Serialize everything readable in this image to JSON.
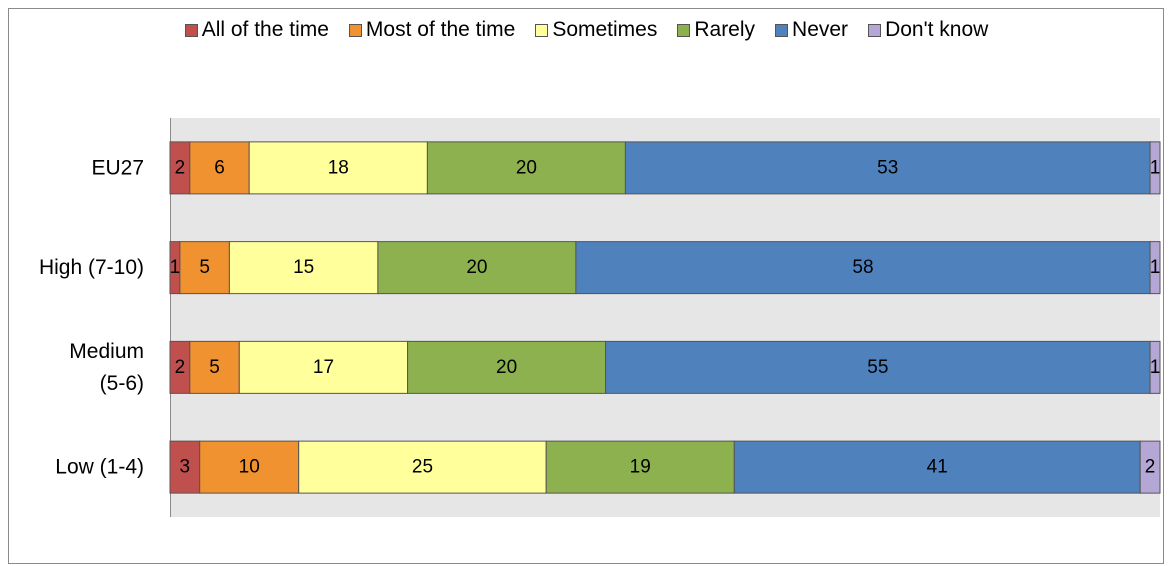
{
  "chart_data": {
    "type": "bar",
    "orientation": "horizontal",
    "stacked": true,
    "categories": [
      "EU27",
      "High (7-10)",
      "Medium (5-6)",
      "Low (1-4)"
    ],
    "category_lines": [
      [
        "EU27"
      ],
      [
        "High (7-10)"
      ],
      [
        "Medium",
        "(5-6)"
      ],
      [
        "Low (1-4)"
      ]
    ],
    "series": [
      {
        "name": "All of the time",
        "color": "#c0504d",
        "values": [
          2,
          1,
          2,
          3
        ]
      },
      {
        "name": "Most of the time",
        "color": "#f0922f",
        "values": [
          6,
          5,
          5,
          10
        ]
      },
      {
        "name": "Sometimes",
        "color": "#ffff9c",
        "values": [
          18,
          15,
          17,
          25
        ]
      },
      {
        "name": "Rarely",
        "color": "#8db14f",
        "values": [
          20,
          20,
          20,
          19
        ]
      },
      {
        "name": "Never",
        "color": "#4f81bd",
        "values": [
          53,
          58,
          55,
          41
        ]
      },
      {
        "name": "Don't know",
        "color": "#b4a7d6",
        "values": [
          1,
          1,
          1,
          2
        ]
      }
    ],
    "xlim": [
      0,
      100
    ],
    "legend_position": "top",
    "plot_background": "#e6e6e6",
    "data_labels": true
  }
}
